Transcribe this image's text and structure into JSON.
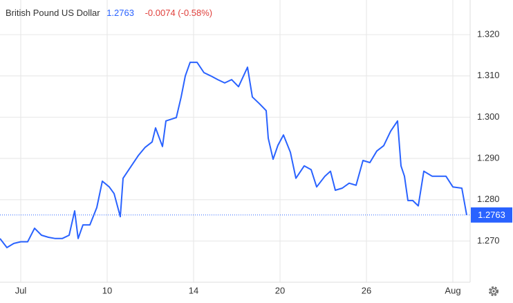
{
  "header": {
    "title": "British Pound US Dollar",
    "change": "-0.0074 (-0.58%)"
  },
  "chart_data": {
    "type": "line",
    "color": "#2962ff",
    "grid": true,
    "x": [
      0,
      1,
      2,
      3,
      4,
      5,
      6,
      7,
      8,
      9,
      10,
      10.8,
      11.3,
      12,
      13,
      14,
      14.8,
      15.8,
      16.5,
      17.4,
      17.8,
      19,
      20,
      21,
      22,
      22.5,
      23.5,
      24,
      25.5,
      26.2,
      26.8,
      27.5,
      28.5,
      29.5,
      30.5,
      31.5,
      32.5,
      33.5,
      34.5,
      35.8,
      36.5,
      37.5,
      38.5,
      38.8,
      39.5,
      40.2,
      41,
      42,
      42.8,
      44,
      45,
      45.8,
      47,
      47.8,
      48.5,
      49.5,
      50.5,
      51.5,
      52.5,
      53.5,
      54.5,
      55.5,
      56.5,
      57.5,
      58,
      58.5,
      59,
      59.7,
      60.5,
      61.3,
      62.5,
      63.5,
      64.5,
      65.5,
      66.8,
      67.5
    ],
    "series": [
      {
        "name": "British Pound US Dollar",
        "color": "#2962ff",
        "values": [
          1.2706,
          1.2684,
          1.2694,
          1.2698,
          1.2698,
          1.2731,
          1.2714,
          1.2709,
          1.2706,
          1.2706,
          1.2714,
          1.2773,
          1.2706,
          1.2739,
          1.2739,
          1.2781,
          1.2845,
          1.2831,
          1.2815,
          1.2759,
          1.2852,
          1.2882,
          1.2907,
          1.2927,
          1.294,
          1.2974,
          1.2929,
          1.2991,
          1.2999,
          1.3049,
          1.31,
          1.3133,
          1.3133,
          1.3108,
          1.31,
          1.3091,
          1.3083,
          1.3091,
          1.3074,
          1.3121,
          1.3049,
          1.3033,
          1.3016,
          1.2949,
          1.2898,
          1.2932,
          1.2957,
          1.2915,
          1.2852,
          1.2882,
          1.2873,
          1.2831,
          1.2857,
          1.2869,
          1.2823,
          1.2828,
          1.284,
          1.2835,
          1.2895,
          1.289,
          1.2918,
          1.2931,
          1.2966,
          1.2991,
          1.2882,
          1.2857,
          1.2798,
          1.2798,
          1.2785,
          1.2869,
          1.2857,
          1.2857,
          1.2857,
          1.2831,
          1.2828,
          1.2763
        ]
      }
    ],
    "xlim": [
      0,
      68
    ],
    "xticks": [
      {
        "value": 3,
        "label": "Jul"
      },
      {
        "value": 15.5,
        "label": "10"
      },
      {
        "value": 28,
        "label": "14"
      },
      {
        "value": 40.5,
        "label": "20"
      },
      {
        "value": 53,
        "label": "26"
      },
      {
        "value": 65.5,
        "label": "Aug"
      }
    ],
    "ylim": [
      1.26,
      1.3284
    ],
    "yticks": [
      {
        "value": 1.27,
        "label": "1.270"
      },
      {
        "value": 1.28,
        "label": "1.280"
      },
      {
        "value": 1.29,
        "label": "1.290"
      },
      {
        "value": 1.3,
        "label": "1.300"
      },
      {
        "value": 1.31,
        "label": "1.310"
      },
      {
        "value": 1.32,
        "label": "1.320"
      }
    ]
  }
}
